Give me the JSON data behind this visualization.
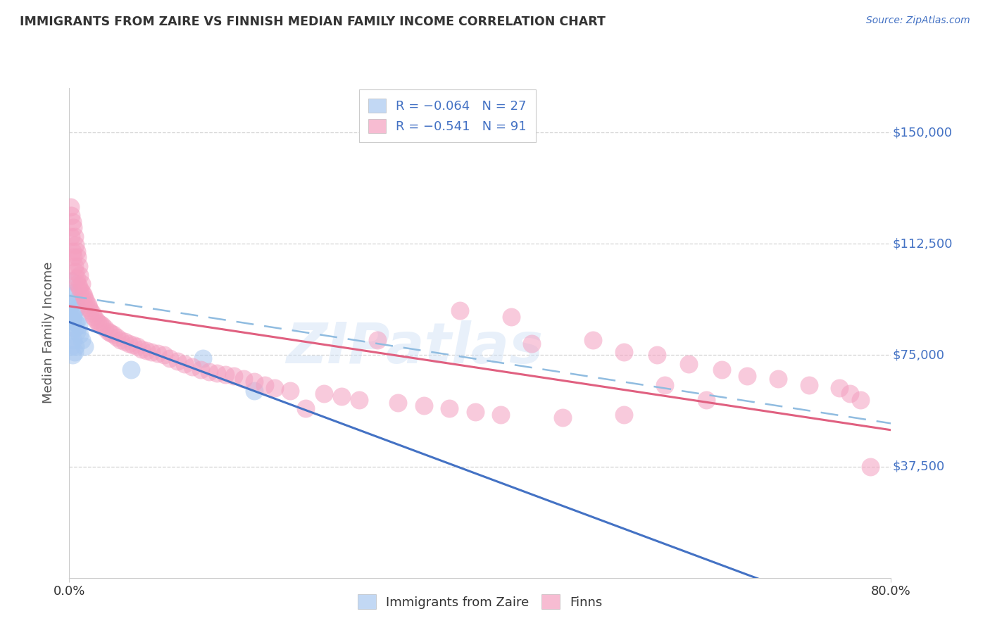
{
  "title": "IMMIGRANTS FROM ZAIRE VS FINNISH MEDIAN FAMILY INCOME CORRELATION CHART",
  "source": "Source: ZipAtlas.com",
  "ylabel": "Median Family Income",
  "ylim": [
    0,
    165000
  ],
  "xlim": [
    0.0,
    0.8
  ],
  "ytick_vals": [
    37500,
    75000,
    112500,
    150000
  ],
  "ytick_labels": [
    "$37,500",
    "$75,000",
    "$112,500",
    "$150,000"
  ],
  "blue_color": "#a8c8f0",
  "pink_color": "#f4a0c0",
  "blue_line_color": "#4472c4",
  "pink_line_color": "#e06080",
  "dashed_line_color": "#90bce0",
  "watermark": "ZIPatlas",
  "blue_x": [
    0.001,
    0.001,
    0.002,
    0.002,
    0.002,
    0.003,
    0.003,
    0.003,
    0.004,
    0.004,
    0.004,
    0.005,
    0.005,
    0.005,
    0.006,
    0.006,
    0.006,
    0.007,
    0.007,
    0.008,
    0.009,
    0.01,
    0.012,
    0.015,
    0.06,
    0.13,
    0.18
  ],
  "blue_y": [
    88000,
    82000,
    100000,
    92000,
    78000,
    95000,
    87000,
    75000,
    96000,
    88000,
    80000,
    90000,
    84000,
    76000,
    93000,
    86000,
    78000,
    91000,
    83000,
    87000,
    85000,
    82000,
    80000,
    78000,
    70000,
    74000,
    63000
  ],
  "pink_x": [
    0.001,
    0.002,
    0.002,
    0.003,
    0.003,
    0.004,
    0.004,
    0.005,
    0.005,
    0.006,
    0.006,
    0.007,
    0.007,
    0.008,
    0.008,
    0.009,
    0.009,
    0.01,
    0.011,
    0.012,
    0.013,
    0.014,
    0.015,
    0.016,
    0.018,
    0.019,
    0.02,
    0.022,
    0.024,
    0.026,
    0.028,
    0.03,
    0.032,
    0.035,
    0.038,
    0.04,
    0.043,
    0.046,
    0.05,
    0.054,
    0.058,
    0.062,
    0.066,
    0.07,
    0.075,
    0.08,
    0.086,
    0.092,
    0.098,
    0.105,
    0.112,
    0.12,
    0.128,
    0.136,
    0.144,
    0.152,
    0.16,
    0.17,
    0.18,
    0.19,
    0.2,
    0.215,
    0.23,
    0.248,
    0.265,
    0.282,
    0.3,
    0.32,
    0.345,
    0.37,
    0.395,
    0.42,
    0.45,
    0.48,
    0.51,
    0.54,
    0.572,
    0.603,
    0.635,
    0.66,
    0.69,
    0.72,
    0.75,
    0.76,
    0.77,
    0.78,
    0.38,
    0.43,
    0.58,
    0.62,
    0.54
  ],
  "pink_y": [
    125000,
    122000,
    115000,
    120000,
    110000,
    118000,
    108000,
    115000,
    105000,
    112000,
    103000,
    110000,
    101000,
    108000,
    99000,
    105000,
    98000,
    102000,
    97000,
    99000,
    96000,
    95000,
    94000,
    93000,
    92000,
    91000,
    90000,
    89000,
    88000,
    87000,
    86000,
    85500,
    85000,
    84000,
    83000,
    82500,
    82000,
    81000,
    80000,
    79500,
    79000,
    78500,
    78000,
    77000,
    76500,
    76000,
    75500,
    75000,
    74000,
    73000,
    72000,
    71000,
    70000,
    69500,
    69000,
    68500,
    68000,
    67000,
    66000,
    65000,
    64000,
    63000,
    57000,
    62000,
    61000,
    60000,
    80000,
    59000,
    58000,
    57000,
    56000,
    55000,
    79000,
    54000,
    80000,
    76000,
    75000,
    72000,
    70000,
    68000,
    67000,
    65000,
    64000,
    62000,
    60000,
    37500,
    90000,
    88000,
    65000,
    60000,
    55000
  ]
}
